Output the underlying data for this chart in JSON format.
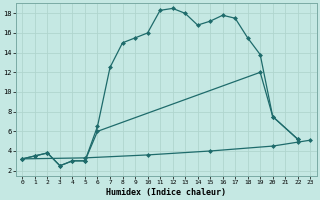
{
  "xlabel": "Humidex (Indice chaleur)",
  "xlim": [
    -0.5,
    23.5
  ],
  "ylim": [
    1.5,
    19.0
  ],
  "xticks": [
    0,
    1,
    2,
    3,
    4,
    5,
    6,
    7,
    8,
    9,
    10,
    11,
    12,
    13,
    14,
    15,
    16,
    17,
    18,
    19,
    20,
    21,
    22,
    23
  ],
  "yticks": [
    2,
    4,
    6,
    8,
    10,
    12,
    14,
    16,
    18
  ],
  "bg_color": "#c5e8e3",
  "line_color": "#1e6b6b",
  "grid_color": "#b0d5ce",
  "line1_x": [
    0,
    1,
    2,
    3,
    4,
    5,
    6,
    7,
    8,
    9,
    10,
    11,
    12,
    13,
    14,
    15,
    16,
    17,
    18,
    19,
    20,
    22
  ],
  "line1_y": [
    3.2,
    3.5,
    3.8,
    2.5,
    3.0,
    3.0,
    6.5,
    12.5,
    15.0,
    15.5,
    16.0,
    18.3,
    18.5,
    18.0,
    16.8,
    17.2,
    17.8,
    17.5,
    15.5,
    13.8,
    7.5,
    5.2
  ],
  "line2_x": [
    0,
    1,
    2,
    3,
    4,
    5,
    6,
    19,
    20,
    22
  ],
  "line2_y": [
    3.2,
    3.5,
    3.8,
    2.5,
    3.0,
    3.0,
    6.0,
    12.0,
    7.5,
    5.2
  ],
  "line3_x": [
    0,
    5,
    10,
    15,
    20,
    22,
    23
  ],
  "line3_y": [
    3.2,
    3.3,
    3.6,
    4.0,
    4.5,
    4.9,
    5.1
  ]
}
